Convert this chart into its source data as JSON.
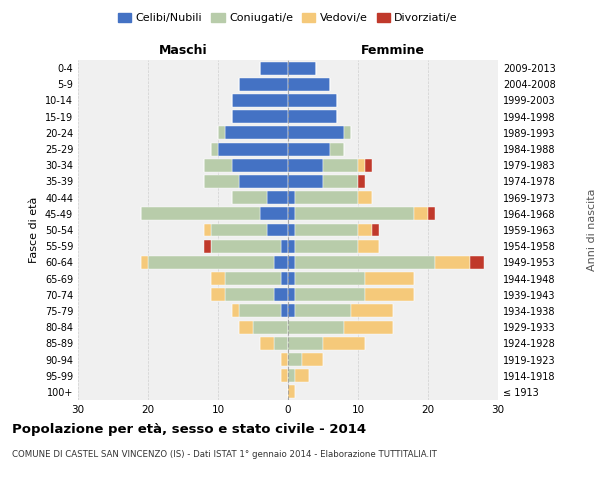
{
  "age_groups": [
    "100+",
    "95-99",
    "90-94",
    "85-89",
    "80-84",
    "75-79",
    "70-74",
    "65-69",
    "60-64",
    "55-59",
    "50-54",
    "45-49",
    "40-44",
    "35-39",
    "30-34",
    "25-29",
    "20-24",
    "15-19",
    "10-14",
    "5-9",
    "0-4"
  ],
  "birth_years": [
    "≤ 1913",
    "1914-1918",
    "1919-1923",
    "1924-1928",
    "1929-1933",
    "1934-1938",
    "1939-1943",
    "1944-1948",
    "1949-1953",
    "1954-1958",
    "1959-1963",
    "1964-1968",
    "1969-1973",
    "1974-1978",
    "1979-1983",
    "1984-1988",
    "1989-1993",
    "1994-1998",
    "1999-2003",
    "2004-2008",
    "2009-2013"
  ],
  "colors": {
    "celibi": "#4472c4",
    "coniugati": "#b8ccaa",
    "vedovi": "#f5c97a",
    "divorziati": "#c0392b",
    "background": "#f0f0f0",
    "grid": "#cccccc"
  },
  "maschi": {
    "celibi": [
      0,
      0,
      0,
      0,
      0,
      1,
      2,
      1,
      2,
      1,
      3,
      4,
      3,
      7,
      8,
      10,
      9,
      8,
      8,
      7,
      4
    ],
    "coniugati": [
      0,
      0,
      0,
      2,
      5,
      6,
      7,
      8,
      18,
      10,
      8,
      17,
      5,
      5,
      4,
      1,
      1,
      0,
      0,
      0,
      0
    ],
    "vedovi": [
      0,
      1,
      1,
      2,
      2,
      1,
      2,
      2,
      1,
      0,
      1,
      0,
      0,
      0,
      0,
      0,
      0,
      0,
      0,
      0,
      0
    ],
    "divorziati": [
      0,
      0,
      0,
      0,
      0,
      0,
      0,
      0,
      0,
      1,
      0,
      0,
      0,
      0,
      0,
      0,
      0,
      0,
      0,
      0,
      0
    ]
  },
  "femmine": {
    "celibi": [
      0,
      0,
      0,
      0,
      0,
      1,
      1,
      1,
      1,
      1,
      1,
      1,
      1,
      5,
      5,
      6,
      8,
      7,
      7,
      6,
      4
    ],
    "coniugati": [
      0,
      1,
      2,
      5,
      8,
      8,
      10,
      10,
      20,
      9,
      9,
      17,
      9,
      5,
      5,
      2,
      1,
      0,
      0,
      0,
      0
    ],
    "vedovi": [
      1,
      2,
      3,
      6,
      7,
      6,
      7,
      7,
      5,
      3,
      2,
      2,
      2,
      0,
      1,
      0,
      0,
      0,
      0,
      0,
      0
    ],
    "divorziati": [
      0,
      0,
      0,
      0,
      0,
      0,
      0,
      0,
      2,
      0,
      1,
      1,
      0,
      1,
      1,
      0,
      0,
      0,
      0,
      0,
      0
    ]
  },
  "title": "Popolazione per età, sesso e stato civile - 2014",
  "subtitle": "COMUNE DI CASTEL SAN VINCENZO (IS) - Dati ISTAT 1° gennaio 2014 - Elaborazione TUTTITALIA.IT",
  "xlabel_left": "Maschi",
  "xlabel_right": "Femmine",
  "ylabel_left": "Fasce di età",
  "ylabel_right": "Anni di nascita",
  "xlim": 30,
  "legend_labels": [
    "Celibi/Nubili",
    "Coniugati/e",
    "Vedovi/e",
    "Divorziati/e"
  ]
}
